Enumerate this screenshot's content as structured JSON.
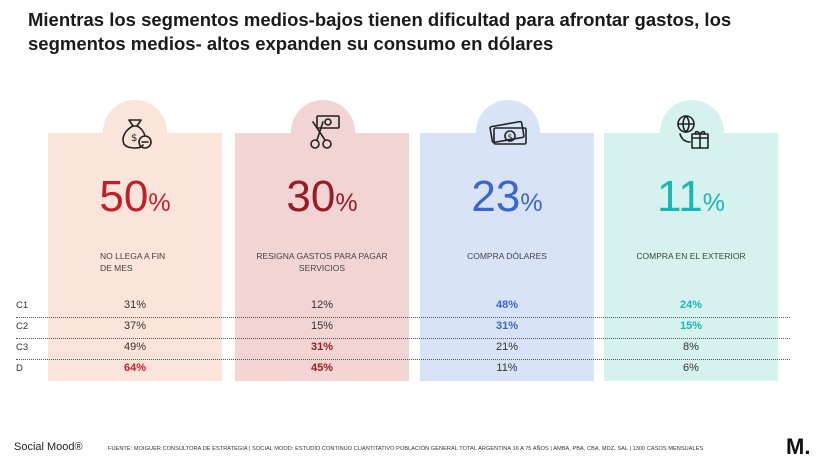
{
  "title": "Mientras los segmentos medios-bajos tienen dificultad para afrontar gastos, los segmentos medios- altos expanden su consumo en dólares",
  "cards": [
    {
      "icon": "money-bag-minus-icon",
      "value": "50",
      "unit": "%",
      "label_line1": "NO LLEGA A FIN",
      "label_line2": "DE MES",
      "color": "#c41e2c",
      "bg": "#fbe4d9"
    },
    {
      "icon": "scissors-cut-money-icon",
      "value": "30",
      "unit": "%",
      "label_line1": "RESIGNA GASTOS PARA PAGAR",
      "label_line2": "SERVICIOS",
      "color": "#9b1b22",
      "bg": "#f3d4d4"
    },
    {
      "icon": "banknotes-dollar-icon",
      "value": "23",
      "unit": "%",
      "label_line1": "COMPRA DÓLARES",
      "label_line2": "",
      "color": "#3a66d4",
      "bg": "#d9e3f7"
    },
    {
      "icon": "globe-gift-icon",
      "value": "11",
      "unit": "%",
      "label_line1": "COMPRA EN EL EXTERIOR",
      "label_line2": "",
      "color": "#19b7b3",
      "bg": "#d6f2ef"
    }
  ],
  "rows": [
    {
      "segment": "C1",
      "values": [
        "31%",
        "12%",
        "48%",
        "24%"
      ]
    },
    {
      "segment": "C2",
      "values": [
        "37%",
        "15%",
        "31%",
        "15%"
      ]
    },
    {
      "segment": "C3",
      "values": [
        "49%",
        "31%",
        "21%",
        "8%"
      ]
    },
    {
      "segment": "D",
      "values": [
        "64%",
        "45%",
        "11%",
        "6%"
      ]
    }
  ],
  "footer": {
    "brand": "Social Mood®",
    "source": "FUENTE: MOIGUER CONSULTORA DE ESTRATEGIA | SOCIAL MOOD: ESTUDIO CONTINUO CUANTITATIVO POBLACIÓN GENERAL TOTAL ARGENTINA 16 A 75 AÑOS | AMBA, PBA, CBA, MDZ, SAL | 1300 CASOS MENSUALES",
    "logo": "M."
  }
}
